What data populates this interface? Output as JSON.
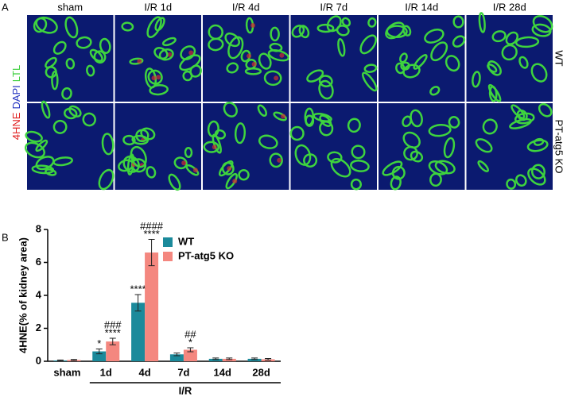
{
  "panel_a": {
    "letter": "A",
    "columns": [
      "sham",
      "I/R 1d",
      "I/R 4d",
      "I/R 7d",
      "I/R 14d",
      "I/R 28d"
    ],
    "rows": [
      "WT",
      "PT-atg5 KO"
    ],
    "stain_labels": [
      {
        "text": "4HNE",
        "color": "#e02020"
      },
      {
        "text": "DAPI",
        "color": "#2030c0"
      },
      {
        "text": "LTL",
        "color": "#40d040"
      }
    ]
  },
  "chart_data": {
    "type": "bar",
    "letter": "B",
    "ylabel": "4HNE(% of kidney area)",
    "categories": [
      "sham",
      "1d",
      "4d",
      "7d",
      "14d",
      "28d"
    ],
    "group_label": "I/R",
    "series": [
      {
        "name": "WT",
        "color": "#1b8a9b",
        "values": [
          0.05,
          0.6,
          3.55,
          0.42,
          0.15,
          0.15
        ],
        "errors": [
          0.03,
          0.15,
          0.5,
          0.08,
          0.05,
          0.05
        ],
        "significance": [
          null,
          [
            "*"
          ],
          [
            "****"
          ],
          null,
          null,
          null
        ]
      },
      {
        "name": "PT-atg5 KO",
        "color": "#f4877f",
        "values": [
          0.08,
          1.2,
          6.6,
          0.7,
          0.15,
          0.12
        ],
        "errors": [
          0.03,
          0.2,
          0.8,
          0.12,
          0.05,
          0.05
        ],
        "significance": [
          null,
          [
            "###",
            "****"
          ],
          [
            "####",
            "****"
          ],
          [
            "##",
            "*"
          ],
          null,
          null
        ]
      }
    ],
    "ylim": [
      0,
      8
    ],
    "yticks": [
      0,
      2,
      4,
      6,
      8
    ],
    "legend": "top-right"
  }
}
